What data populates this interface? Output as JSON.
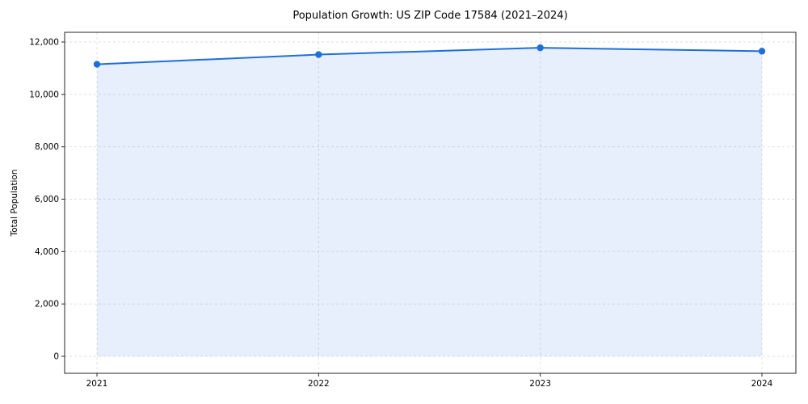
{
  "page": {
    "background": "#ffffff"
  },
  "chart_data": {
    "type": "area",
    "title": "Population Growth: US ZIP Code 17584 (2021–2024)",
    "xlabel": "",
    "ylabel": "Total Population",
    "categories": [
      "2021",
      "2022",
      "2023",
      "2024"
    ],
    "series": [
      {
        "name": "Total Population",
        "values": [
          11150,
          11520,
          11780,
          11650
        ]
      }
    ],
    "ylim": [
      0,
      12000
    ],
    "yticks": [
      0,
      2000,
      4000,
      6000,
      8000,
      10000,
      12000
    ],
    "grid": true,
    "grid_style": "dashed",
    "legend": "none",
    "colors": {
      "line": "#1f6fd9",
      "marker": "#1f6fd9",
      "fill": "#e9f1fc",
      "grid": "#dedede",
      "axis": "#262626",
      "text": "#000000"
    }
  }
}
